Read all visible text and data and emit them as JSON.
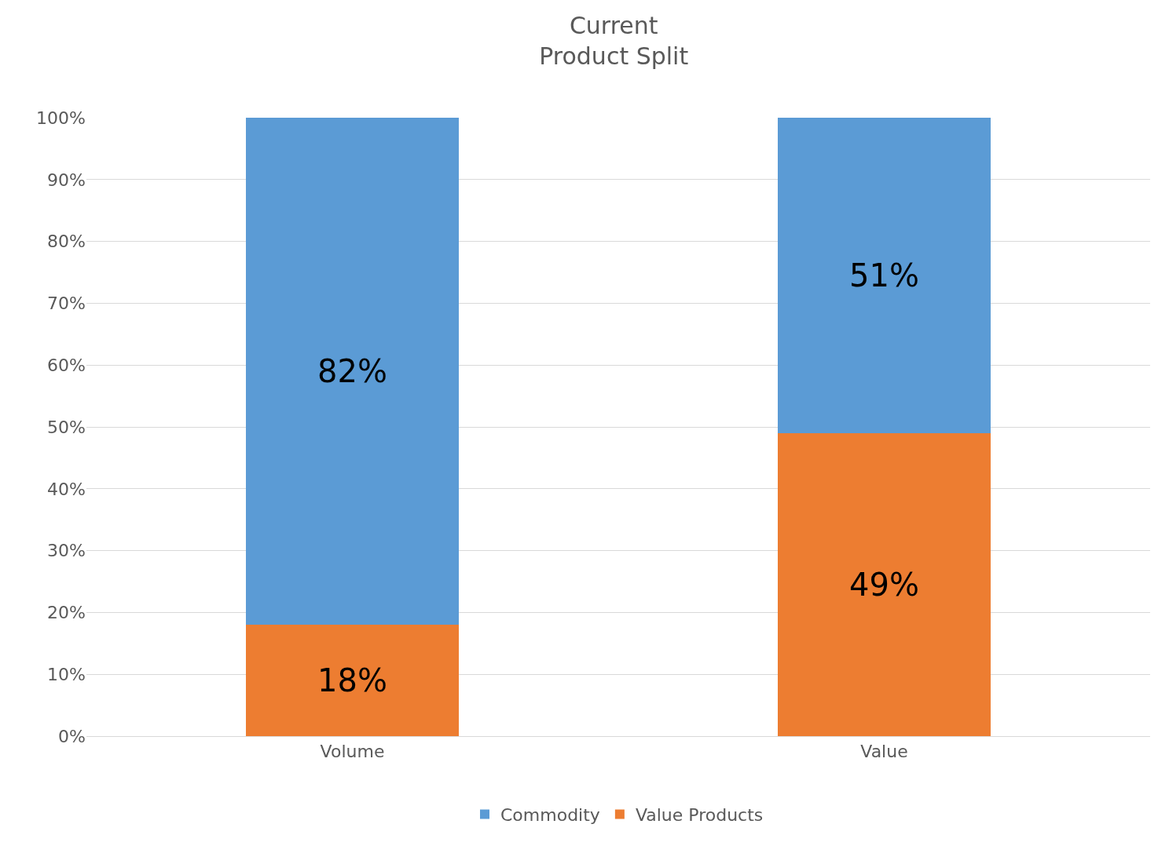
{
  "chart_data": {
    "type": "bar",
    "title": "Current\nProduct Split",
    "stacked": true,
    "categories": [
      "Volume",
      "Value"
    ],
    "series": [
      {
        "name": "Value Products",
        "color": "#ed7d31",
        "values": [
          18,
          49
        ],
        "value_labels": [
          "18%",
          "49%"
        ]
      },
      {
        "name": "Commodity",
        "color": "#5b9bd5",
        "values": [
          82,
          51
        ],
        "value_labels": [
          "82%",
          "51%"
        ]
      }
    ],
    "ylim": [
      0,
      100
    ],
    "yticks": [
      {
        "value": 0,
        "label": "0%"
      },
      {
        "value": 10,
        "label": "10%"
      },
      {
        "value": 20,
        "label": "20%"
      },
      {
        "value": 30,
        "label": "30%"
      },
      {
        "value": 40,
        "label": "40%"
      },
      {
        "value": 50,
        "label": "50%"
      },
      {
        "value": 60,
        "label": "60%"
      },
      {
        "value": 70,
        "label": "70%"
      },
      {
        "value": 80,
        "label": "80%"
      },
      {
        "value": 90,
        "label": "90%"
      },
      {
        "value": 100,
        "label": "100%"
      }
    ],
    "grid": "y",
    "legend": "bottom"
  }
}
